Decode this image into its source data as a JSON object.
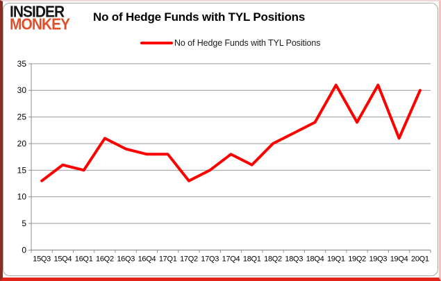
{
  "logo": {
    "line1": "INSIDER",
    "line2": "MONKEY"
  },
  "header": {
    "title": "No of Hedge Funds with TYL Positions"
  },
  "legend": {
    "label": "No of Hedge Funds with TYL Positions"
  },
  "colors": {
    "line": "#ff0000",
    "logo_primary": "#141414",
    "logo_accent": "#e04f2a",
    "grid": "#9a9a9a",
    "axis": "#8c8c8c",
    "axis_text": "#000000"
  },
  "chart_data": {
    "type": "line",
    "title": "No of Hedge Funds with TYL Positions",
    "categories": [
      "15Q3",
      "15Q4",
      "16Q1",
      "16Q2",
      "16Q3",
      "16Q4",
      "17Q1",
      "17Q2",
      "17Q3",
      "17Q4",
      "18Q1",
      "18Q2",
      "18Q3",
      "18Q4",
      "19Q1",
      "19Q2",
      "19Q3",
      "19Q4",
      "20Q1"
    ],
    "series": [
      {
        "name": "No of Hedge Funds with TYL Positions",
        "color": "#ff0000",
        "values": [
          13,
          16,
          15,
          21,
          19,
          18,
          18,
          13,
          15,
          18,
          16,
          20,
          22,
          24,
          31,
          24,
          31,
          21,
          30
        ]
      }
    ],
    "xlabel": "",
    "ylabel": "",
    "ylim": [
      0,
      35
    ],
    "yticks": [
      0,
      5,
      10,
      15,
      20,
      25,
      30,
      35
    ],
    "grid": true,
    "legend_position": "top-center"
  }
}
